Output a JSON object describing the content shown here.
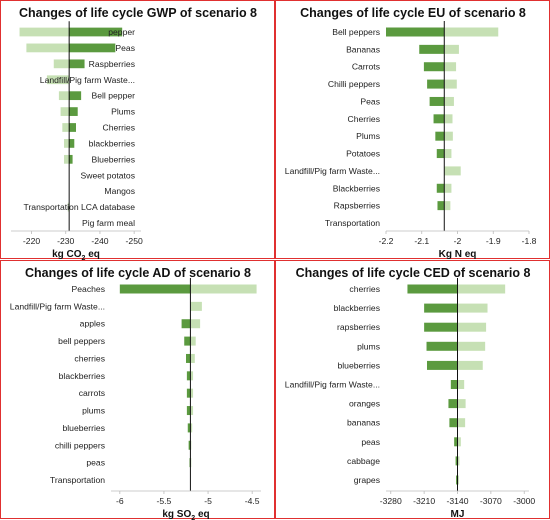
{
  "colors": {
    "low_bar": "#5b9a3f",
    "high_bar": "#c6e0b4",
    "baseline": "#111111",
    "frame": "#e03030"
  },
  "chart_data": [
    {
      "type": "bar",
      "orientation": "tornado",
      "title": "Changes of life cycle GWP of scenario 8",
      "xlabel_main": "kg CO",
      "xlabel_sub": "2",
      "xlabel_tail": " eq",
      "xlim": [
        -252,
        -214
      ],
      "baseline": -231,
      "ticks": [
        "-250",
        "-240",
        "-230",
        "-220"
      ],
      "tick_values": [
        -250,
        -240,
        -230,
        -220
      ],
      "categories": [
        "pepper",
        "Peas",
        "Raspberries",
        "Landfill/Pig farm Waste...",
        "Bell pepper",
        "Plums",
        "Cherries",
        "blackberries",
        "Blueberries",
        "Sweet potatos",
        "Mangos",
        "Transportation LCA database",
        "Pig farm meal"
      ],
      "low": [
        -246.5,
        -244.5,
        -235.5,
        -231,
        -234.5,
        -233.5,
        -233,
        -232.5,
        -232,
        -231,
        -231,
        -231,
        -231
      ],
      "high": [
        -216.5,
        -218.5,
        -226.5,
        -224.5,
        -228,
        -228.5,
        -229,
        -229.5,
        -229.5,
        -231,
        -231,
        -230.6,
        -231
      ]
    },
    {
      "type": "bar",
      "orientation": "tornado",
      "title": "Changes of life cycle EU of scenario 8",
      "xlabel_main": "Kg N eq",
      "xlabel_sub": "",
      "xlabel_tail": "",
      "xlim": [
        -2.2,
        -1.8
      ],
      "baseline": -2.037,
      "ticks": [
        "-2.2",
        "-2.1",
        "-2",
        "-1.9",
        "-1.8"
      ],
      "tick_values": [
        -2.2,
        -2.1,
        -2.0,
        -1.9,
        -1.8
      ],
      "categories": [
        "Bell peppers",
        "Bananas",
        "Carrots",
        "Chilli peppers",
        "Peas",
        "Cherries",
        "Plums",
        "Potatoes",
        "Landfill/Pig farm Waste...",
        "Blackberries",
        "Rapsberries",
        "Transportation"
      ],
      "low": [
        -2.2,
        -2.107,
        -2.094,
        -2.085,
        -2.078,
        -2.067,
        -2.062,
        -2.058,
        -2.037,
        -2.058,
        -2.056,
        -2.037
      ],
      "high": [
        -1.886,
        -1.996,
        -2.004,
        -2.002,
        -2.01,
        -2.014,
        -2.013,
        -2.017,
        -1.991,
        -2.017,
        -2.02,
        -2.037
      ]
    },
    {
      "type": "bar",
      "orientation": "tornado",
      "title": "Changes of life cycle AD of scenario 8",
      "xlabel_main": "kg SO",
      "xlabel_sub": "2",
      "xlabel_tail": " eq",
      "xlim": [
        -6.1,
        -4.4
      ],
      "baseline": -5.2,
      "ticks": [
        "-6",
        "-5.5",
        "-5",
        "-4.5"
      ],
      "tick_values": [
        -6,
        -5.5,
        -5,
        -4.5
      ],
      "categories": [
        "Peaches",
        "Landfill/Pig farm Waste...",
        "apples",
        "bell peppers",
        "cherries",
        "blackberries",
        "carrots",
        "plums",
        "blueberries",
        "chilli peppers",
        "peas",
        "Transportation"
      ],
      "low": [
        -6.0,
        -5.2,
        -5.3,
        -5.27,
        -5.25,
        -5.24,
        -5.24,
        -5.24,
        -5.23,
        -5.22,
        -5.21,
        -5.2
      ],
      "high": [
        -4.45,
        -5.07,
        -5.09,
        -5.14,
        -5.15,
        -5.17,
        -5.17,
        -5.17,
        -5.18,
        -5.19,
        -5.19,
        -5.2
      ]
    },
    {
      "type": "bar",
      "orientation": "tornado",
      "title": "Changes of life cycle CED of scenario 8",
      "xlabel_main": "MJ",
      "xlabel_sub": "",
      "xlabel_tail": "",
      "xlim": [
        -3290,
        -2990
      ],
      "baseline": -3140,
      "ticks": [
        "-3280",
        "-3210",
        "-3140",
        "-3070",
        "-3000"
      ],
      "tick_values": [
        -3280,
        -3210,
        -3140,
        -3070,
        -3000
      ],
      "categories": [
        "cherries",
        "blackberries",
        "rapsberries",
        "plums",
        "blueberries",
        "Landfill/Pig farm Waste...",
        "oranges",
        "bananas",
        "peas",
        "cabbage",
        "grapes"
      ],
      "low": [
        -3245,
        -3210,
        -3210,
        -3205,
        -3204,
        -3154,
        -3159,
        -3157,
        -3147,
        -3144,
        -3143
      ],
      "high": [
        -3040,
        -3077,
        -3080,
        -3082,
        -3087,
        -3126,
        -3123,
        -3124,
        -3133,
        -3136,
        -3137
      ]
    }
  ]
}
